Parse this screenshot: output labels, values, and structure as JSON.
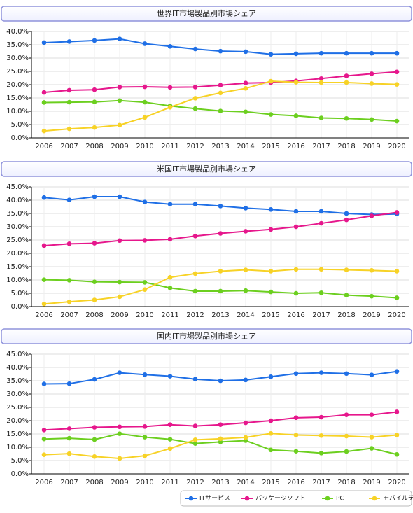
{
  "chart_data": [
    {
      "type": "line",
      "title": "世界IT市場製品別市場シェア",
      "categories": [
        "2006",
        "2007",
        "2008",
        "2009",
        "2010",
        "2011",
        "2012",
        "2013",
        "2014",
        "2015",
        "2016",
        "2017",
        "2018",
        "2019",
        "2020"
      ],
      "ylim": [
        0,
        40
      ],
      "yticks": [
        {
          "value": 0,
          "label": "0.0%"
        },
        {
          "value": 5,
          "label": "5.0%"
        },
        {
          "value": 10,
          "label": "10.0%"
        },
        {
          "value": 15,
          "label": "15.0%"
        },
        {
          "value": 20,
          "label": "20.0%"
        },
        {
          "value": 25,
          "label": "25.0%"
        },
        {
          "value": 30,
          "label": "30.0%"
        },
        {
          "value": 35,
          "label": "35.0%"
        },
        {
          "value": 40,
          "label": "40.0%"
        }
      ],
      "grid": true,
      "series": [
        {
          "name": "ITサービス",
          "color": "#1f6fe6",
          "values": [
            35.8,
            36.2,
            36.6,
            37.2,
            35.4,
            34.4,
            33.4,
            32.6,
            32.4,
            31.4,
            31.6,
            31.8,
            31.8,
            31.8,
            31.8
          ]
        },
        {
          "name": "パッケージソフト",
          "color": "#e6178c",
          "values": [
            17.1,
            17.9,
            18.1,
            19.1,
            19.2,
            19.0,
            19.1,
            19.8,
            20.6,
            20.8,
            21.4,
            22.3,
            23.3,
            24.1,
            24.8
          ]
        },
        {
          "name": "PC",
          "color": "#6ccf1f",
          "values": [
            13.3,
            13.4,
            13.5,
            14.0,
            13.4,
            12.0,
            11.0,
            10.1,
            9.8,
            8.8,
            8.3,
            7.5,
            7.3,
            6.9,
            6.3
          ]
        },
        {
          "name": "モバイルデバイス",
          "color": "#f7d226",
          "values": [
            2.6,
            3.4,
            3.9,
            4.8,
            7.7,
            11.5,
            14.9,
            16.9,
            18.6,
            21.3,
            20.9,
            20.8,
            20.8,
            20.4,
            20.1
          ]
        }
      ]
    },
    {
      "type": "line",
      "title": "米国IT市場製品別市場シェア",
      "categories": [
        "2006",
        "2007",
        "2008",
        "2009",
        "2010",
        "2011",
        "2012",
        "2013",
        "2014",
        "2015",
        "2016",
        "2017",
        "2018",
        "2019",
        "2020"
      ],
      "ylim": [
        0,
        45
      ],
      "yticks": [
        {
          "value": 0,
          "label": "0.0%"
        },
        {
          "value": 5,
          "label": "5.0%"
        },
        {
          "value": 10,
          "label": "10.0%"
        },
        {
          "value": 15,
          "label": "15.0%"
        },
        {
          "value": 20,
          "label": "20.0%"
        },
        {
          "value": 25,
          "label": "25.0%"
        },
        {
          "value": 30,
          "label": "30.0%"
        },
        {
          "value": 35,
          "label": "35.0%"
        },
        {
          "value": 40,
          "label": "40.0%"
        },
        {
          "value": 45,
          "label": "45.0%"
        }
      ],
      "grid": true,
      "series": [
        {
          "name": "ITサービス",
          "color": "#1f6fe6",
          "values": [
            41.0,
            40.1,
            41.3,
            41.3,
            39.3,
            38.5,
            38.5,
            37.8,
            37.0,
            36.5,
            35.8,
            35.8,
            35.0,
            34.6,
            34.8
          ]
        },
        {
          "name": "パッケージソフト",
          "color": "#e6178c",
          "values": [
            22.9,
            23.6,
            23.8,
            24.8,
            24.9,
            25.3,
            26.5,
            27.5,
            28.3,
            29.0,
            30.0,
            31.3,
            32.6,
            34.1,
            35.4
          ]
        },
        {
          "name": "PC",
          "color": "#6ccf1f",
          "values": [
            10.1,
            9.9,
            9.3,
            9.2,
            9.1,
            7.0,
            5.8,
            5.8,
            6.0,
            5.5,
            5.0,
            5.2,
            4.3,
            3.9,
            3.3
          ]
        },
        {
          "name": "モバイルデバイス",
          "color": "#f7d226",
          "values": [
            1.0,
            1.8,
            2.5,
            3.7,
            6.4,
            11.0,
            12.4,
            13.3,
            13.8,
            13.3,
            14.0,
            14.0,
            13.8,
            13.6,
            13.3
          ]
        }
      ]
    },
    {
      "type": "line",
      "title": "国内IT市場製品別市場シェア",
      "categories": [
        "2006",
        "2007",
        "2008",
        "2009",
        "2010",
        "2011",
        "2012",
        "2013",
        "2014",
        "2015",
        "2016",
        "2017",
        "2018",
        "2019",
        "2020"
      ],
      "ylim": [
        0,
        45
      ],
      "yticks": [
        {
          "value": 0,
          "label": "0.0%"
        },
        {
          "value": 5,
          "label": "5.0%"
        },
        {
          "value": 10,
          "label": "10.0%"
        },
        {
          "value": 15,
          "label": "15.0%"
        },
        {
          "value": 20,
          "label": "20.0%"
        },
        {
          "value": 25,
          "label": "25.0%"
        },
        {
          "value": 30,
          "label": "30.0%"
        },
        {
          "value": 35,
          "label": "35.0%"
        },
        {
          "value": 40,
          "label": "40.0%"
        },
        {
          "value": 45,
          "label": "45.0%"
        }
      ],
      "grid": true,
      "series": [
        {
          "name": "ITサービス",
          "color": "#1f6fe6",
          "values": [
            33.8,
            33.9,
            35.5,
            38.0,
            37.3,
            36.7,
            35.6,
            35.0,
            35.3,
            36.5,
            37.7,
            38.0,
            37.7,
            37.2,
            38.5
          ]
        },
        {
          "name": "パッケージソフト",
          "color": "#e6178c",
          "values": [
            16.5,
            17.0,
            17.5,
            17.7,
            17.8,
            18.5,
            18.0,
            18.5,
            19.2,
            20.0,
            21.1,
            21.3,
            22.2,
            22.2,
            23.3
          ]
        },
        {
          "name": "PC",
          "color": "#6ccf1f",
          "values": [
            13.1,
            13.4,
            12.9,
            15.1,
            13.8,
            13.0,
            11.4,
            12.0,
            12.5,
            9.0,
            8.5,
            7.8,
            8.4,
            9.6,
            7.3
          ]
        },
        {
          "name": "モバイルデバイス",
          "color": "#f7d226",
          "values": [
            7.2,
            7.6,
            6.5,
            5.8,
            6.8,
            9.5,
            12.8,
            13.2,
            13.7,
            15.2,
            14.6,
            14.4,
            14.2,
            13.8,
            14.6
          ]
        }
      ]
    }
  ]
}
